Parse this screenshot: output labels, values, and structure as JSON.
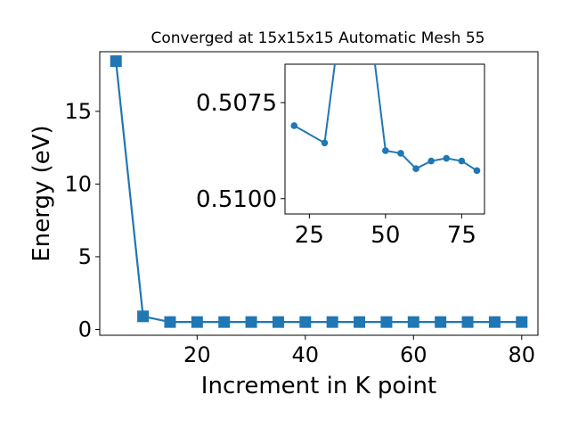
{
  "chart_data": [
    {
      "type": "line",
      "title": "Converged at 15x15x15 Automatic Mesh 55",
      "xlabel": "Increment in K point",
      "ylabel": "Energy (eV)",
      "xlim": [
        2,
        83
      ],
      "ylim": [
        -0.4,
        19.1
      ],
      "xticks": [
        20,
        40,
        60,
        80
      ],
      "yticks": [
        0,
        5,
        10,
        15
      ],
      "grid": false,
      "marker": "square",
      "color": "#1f77b4",
      "series": [
        {
          "x": [
            5,
            10,
            15,
            20,
            25,
            30,
            35,
            40,
            45,
            50,
            55,
            60,
            65,
            70,
            75,
            80
          ],
          "y": [
            18.45,
            0.9,
            0.51,
            0.51,
            0.51,
            0.51,
            0.51,
            0.51,
            0.51,
            0.51,
            0.51,
            0.51,
            0.51,
            0.51,
            0.51,
            0.51
          ]
        }
      ]
    },
    {
      "type": "line",
      "inset": true,
      "xlim": [
        17,
        82.5
      ],
      "ylim": [
        -0.5104,
        -0.5065
      ],
      "yaxis_label_format": "absolute",
      "xticks": [
        25,
        50,
        75
      ],
      "yticks": [
        -0.5075,
        -0.51
      ],
      "ytick_labels": [
        "0.5075",
        "0.5100"
      ],
      "grid": false,
      "marker": "circle",
      "color": "#1f77b4",
      "series": [
        {
          "x": [
            20,
            30,
            35,
            45,
            50,
            55,
            60,
            65,
            70,
            75,
            80
          ],
          "y": [
            -0.5081,
            -0.50855,
            -0.5055,
            -0.5055,
            -0.50875,
            -0.50882,
            -0.50922,
            -0.50902,
            -0.50895,
            -0.50902,
            -0.50927
          ]
        }
      ]
    }
  ]
}
